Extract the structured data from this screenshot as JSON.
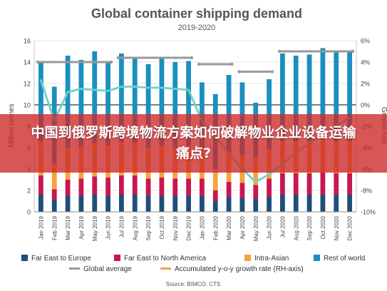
{
  "chart_data": {
    "type": "bar",
    "stacked": true,
    "title": "Global container shipping demand",
    "subtitle": "2019-2020",
    "ylabel_left": "Million tonnes",
    "ylabel_right": "Growth rate",
    "ylim_left": [
      0,
      16
    ],
    "ylim_right": [
      -10,
      6
    ],
    "yticks_left": [
      "0",
      "2",
      "4",
      "6",
      "8",
      "10",
      "12",
      "14",
      "16"
    ],
    "yticks_right": [
      "-10%",
      "-8%",
      "-6%",
      "-4%",
      "-2%",
      "0%",
      "2%",
      "4%",
      "6%"
    ],
    "grid": true,
    "categories": [
      "Jan 2019",
      "Feb 2019",
      "Mar 2019",
      "Apr 2019",
      "May 2019",
      "Jun 2019",
      "Jul 2019",
      "Aug 2019",
      "Sep 2019",
      "Oct 2019",
      "Nov 2019",
      "Dec 2019",
      "Jan 2020",
      "Feb 2020",
      "Mar 2020",
      "Apr 2020",
      "May 2020",
      "Jun 2020",
      "Jul 2020",
      "Aug 2020",
      "Sep 2020",
      "Oct 2020",
      "Nov 2020",
      "Dec 2020"
    ],
    "series": [
      {
        "name": "Far East to Europe",
        "color": "#1f4e79",
        "values": [
          1.6,
          1.1,
          1.5,
          1.5,
          1.6,
          1.5,
          1.6,
          1.6,
          1.5,
          1.5,
          1.5,
          1.5,
          1.5,
          1.0,
          1.4,
          1.3,
          1.2,
          1.4,
          1.6,
          1.6,
          1.6,
          1.6,
          1.6,
          1.6
        ]
      },
      {
        "name": "Far East to North America",
        "color": "#c8174f",
        "values": [
          1.8,
          1.0,
          1.5,
          1.6,
          1.7,
          1.7,
          1.8,
          1.8,
          1.6,
          1.7,
          1.6,
          1.6,
          1.6,
          1.0,
          1.4,
          1.4,
          1.3,
          1.7,
          2.0,
          2.0,
          2.0,
          2.1,
          2.0,
          2.0
        ]
      },
      {
        "name": "Intra-Asian",
        "color": "#f5a340",
        "values": [
          3.2,
          2.4,
          3.0,
          3.0,
          3.1,
          3.0,
          3.1,
          3.1,
          2.9,
          3.0,
          2.9,
          3.0,
          2.9,
          2.0,
          2.8,
          2.6,
          2.6,
          2.8,
          3.0,
          3.0,
          3.0,
          3.1,
          3.0,
          3.0
        ]
      },
      {
        "name": "Rest of world",
        "color": "#1b8fbf",
        "values": [
          7.4,
          7.2,
          8.6,
          8.1,
          8.6,
          7.8,
          8.3,
          8.0,
          7.8,
          8.2,
          8.0,
          8.0,
          6.1,
          7.0,
          7.2,
          6.8,
          5.1,
          6.5,
          8.2,
          8.0,
          8.1,
          8.5,
          8.4,
          8.5
        ]
      }
    ],
    "global_average": {
      "name": "Global average",
      "color": "#999999",
      "segments": [
        {
          "from": 0,
          "to": 5,
          "value": 14.0
        },
        {
          "from": 6,
          "to": 11,
          "value": 14.4
        },
        {
          "from": 12,
          "to": 14,
          "value": 13.8
        },
        {
          "from": 15,
          "to": 17,
          "value": 13.1
        },
        {
          "from": 18,
          "to": 23,
          "value": 15.0
        }
      ]
    },
    "growth_line": {
      "name": "Accumulated y-o-y growth rate (RH-axis)",
      "color": "#6ad3c8",
      "values": [
        2.3,
        -1.5,
        1.2,
        1.5,
        1.4,
        1.3,
        1.7,
        1.7,
        1.6,
        1.6,
        1.5,
        1.4,
        -1.5,
        -3.0,
        -4.5,
        -6.0,
        -7.2,
        -6.5,
        -5.5,
        -4.5,
        -3.6,
        -2.8,
        -2.0,
        -1.2
      ]
    },
    "legend": [
      {
        "name": "Far East to Europe",
        "color": "#1f4e79",
        "shape": "square"
      },
      {
        "name": "Far East to North America",
        "color": "#c8174f",
        "shape": "square"
      },
      {
        "name": "Intra-Asian",
        "color": "#f5a340",
        "shape": "square"
      },
      {
        "name": "Rest of world",
        "color": "#1b8fbf",
        "shape": "square"
      },
      {
        "name": "Global average",
        "color": "#999999",
        "shape": "line"
      },
      {
        "name": "Accumulated y-o-y growth rate (RH-axis)",
        "color": "#f5a340",
        "shape": "line"
      }
    ],
    "legend_position": "bottom",
    "source": "Source: BIMCO, CTS"
  },
  "overlay": {
    "text": "中国到俄罗斯跨境物流方案如何破解物业企业设备运输痛点?"
  }
}
